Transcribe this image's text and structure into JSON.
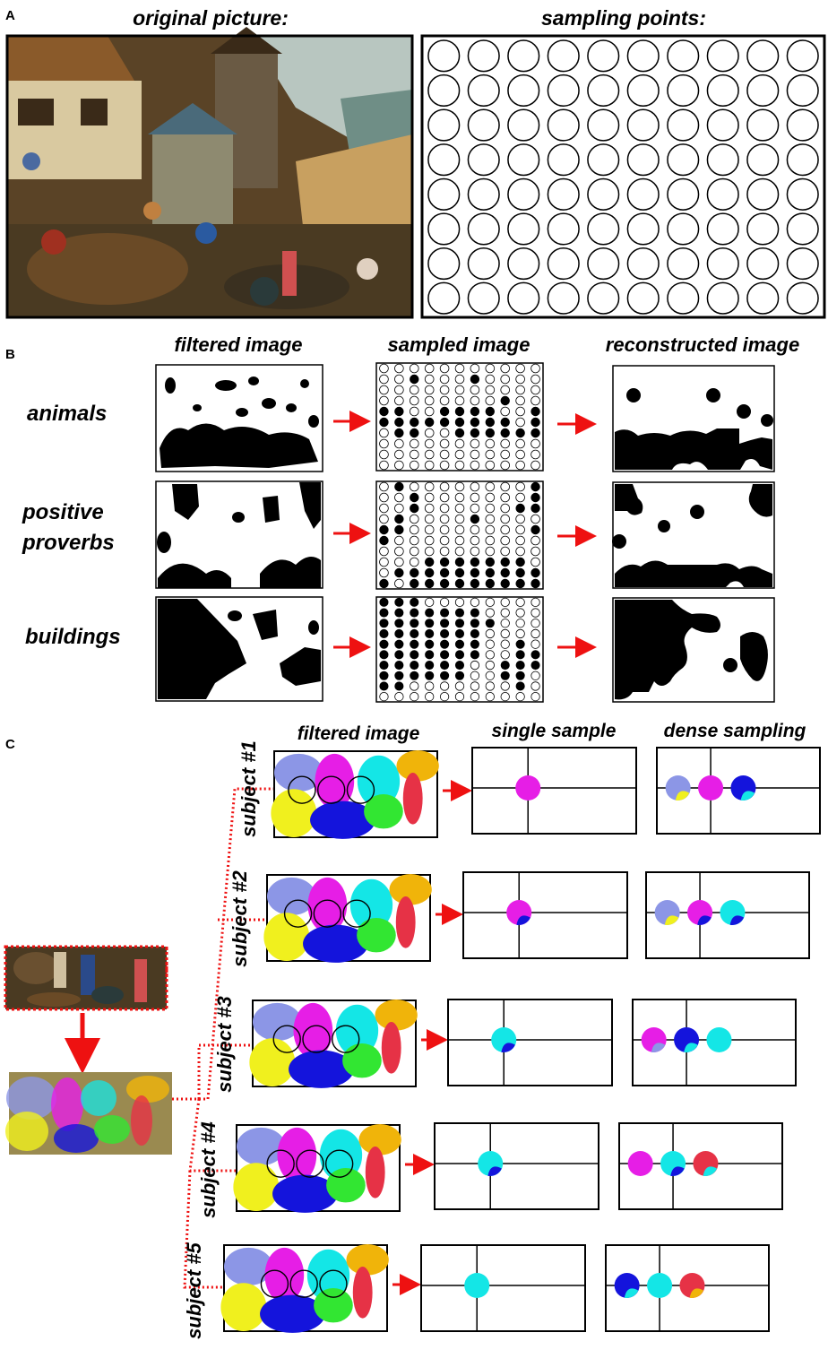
{
  "panel_a": {
    "letter": "A",
    "original_title": "original picture:",
    "sampling_title": "sampling points:",
    "grid": {
      "rows": 8,
      "cols": 10
    }
  },
  "panel_b": {
    "letter": "B",
    "col_filtered": "filtered image",
    "col_sampled": "sampled image",
    "col_reconstructed": "reconstructed image",
    "rows": [
      {
        "label_lines": [
          "animals"
        ],
        "filled": [
          "1,2",
          "1,6",
          "3,8",
          "4,0",
          "4,1",
          "4,4",
          "4,5",
          "4,6",
          "4,7",
          "4,10",
          "5,0",
          "5,1",
          "5,2",
          "5,3",
          "5,4",
          "5,5",
          "5,6",
          "5,7",
          "5,8",
          "5,10",
          "6,1",
          "6,2",
          "6,5",
          "6,6",
          "6,7",
          "6,8",
          "6,9",
          "6,10"
        ]
      },
      {
        "label_lines": [
          "positive",
          "proverbs"
        ],
        "filled": [
          "0,1",
          "0,10",
          "1,2",
          "1,10",
          "2,2",
          "2,9",
          "2,10",
          "3,1",
          "3,6",
          "4,0",
          "4,1",
          "4,10",
          "5,0",
          "7,3",
          "7,4",
          "7,5",
          "7,6",
          "7,7",
          "7,8",
          "7,9",
          "8,1",
          "8,2",
          "8,3",
          "8,4",
          "8,5",
          "8,6",
          "8,7",
          "8,8",
          "8,9",
          "8,10",
          "9,0",
          "9,2",
          "9,3",
          "9,4",
          "9,5",
          "9,6",
          "9,7",
          "9,8",
          "9,9",
          "9,10"
        ]
      },
      {
        "label_lines": [
          "buildings"
        ],
        "filled": [
          "0,0",
          "0,1",
          "0,2",
          "1,0",
          "1,1",
          "1,2",
          "1,3",
          "1,4",
          "1,5",
          "1,6",
          "2,0",
          "2,1",
          "2,2",
          "2,3",
          "2,4",
          "2,5",
          "2,6",
          "2,7",
          "3,0",
          "3,1",
          "3,2",
          "3,3",
          "3,4",
          "3,5",
          "3,6",
          "4,0",
          "4,1",
          "4,2",
          "4,3",
          "4,4",
          "4,5",
          "4,6",
          "4,9",
          "5,0",
          "5,1",
          "5,2",
          "5,3",
          "5,4",
          "5,5",
          "5,6",
          "5,9",
          "5,10",
          "6,0",
          "6,1",
          "6,2",
          "6,3",
          "6,4",
          "6,5",
          "6,8",
          "6,9",
          "6,10",
          "7,0",
          "7,1",
          "7,2",
          "7,3",
          "7,4",
          "7,5",
          "7,8",
          "7,9",
          "8,0",
          "8,1",
          "8,9"
        ]
      }
    ]
  },
  "panel_c": {
    "letter": "C",
    "col_filtered": "filtered image",
    "col_single": "single sample",
    "col_dense": "dense sampling",
    "subjects": [
      {
        "label": "subject #1",
        "single": [
          "magenta"
        ],
        "dense": [
          "lavender/yellow",
          "magenta",
          "blue/cyan"
        ]
      },
      {
        "label": "subject #2",
        "single": [
          "magenta/blue"
        ],
        "dense": [
          "lavender/yellow",
          "magenta/blue",
          "cyan/blue"
        ]
      },
      {
        "label": "subject #3",
        "single": [
          "cyan/blue"
        ],
        "dense": [
          "magenta/lavender",
          "blue/cyan",
          "cyan"
        ]
      },
      {
        "label": "subject #4",
        "single": [
          "cyan/blue"
        ],
        "dense": [
          "magenta",
          "cyan/blue",
          "red/cyan"
        ]
      },
      {
        "label": "subject #5",
        "single": [
          "cyan"
        ],
        "dense": [
          "blue/cyan",
          "cyan",
          "red/orange"
        ]
      }
    ]
  },
  "colors": {
    "arrow": "#ee1111",
    "lavender": "#8c96e6",
    "yellow": "#f0f01e",
    "magenta": "#e61ee6",
    "blue": "#1414dc",
    "cyan": "#14e6e6",
    "green": "#32e632",
    "orange": "#f0b40a",
    "red": "#e63246",
    "painting_dark": "#3b2e1c",
    "painting_mid": "#7a5a30",
    "painting_light": "#c8a060"
  }
}
